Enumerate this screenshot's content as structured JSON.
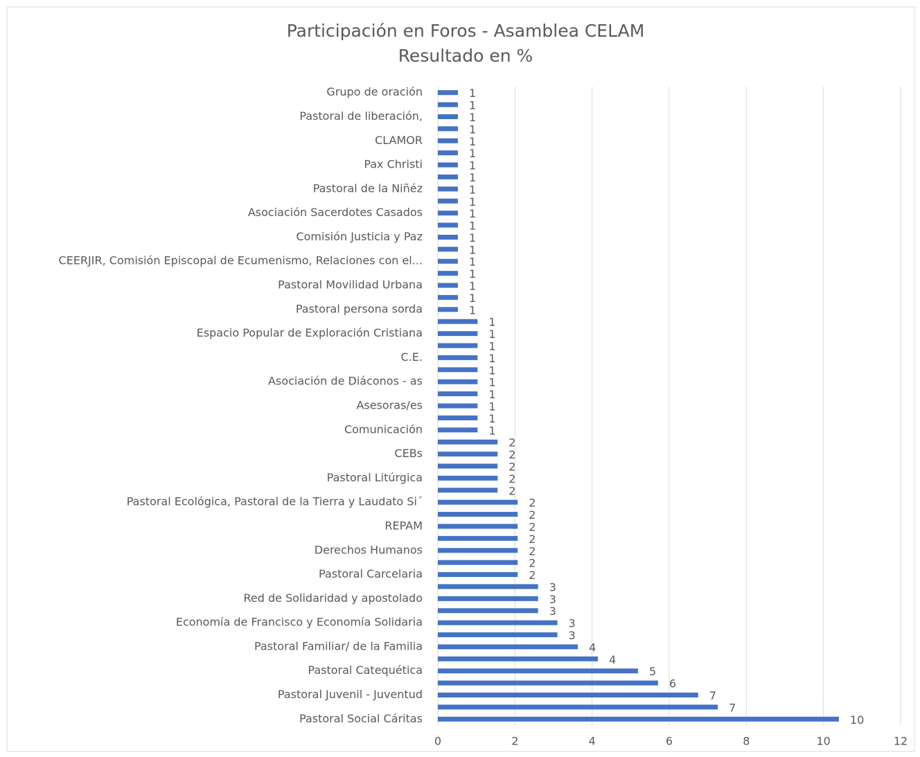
{
  "chart_data": {
    "type": "bar",
    "orientation": "horizontal",
    "title": "Participación en Foros - Asamblea CELAM",
    "subtitle": "Resultado en %",
    "categories": [
      "Grupo de oración",
      null,
      "Pastoral de liberación,",
      null,
      "CLAMOR",
      null,
      "Pax Christi",
      null,
      "Pastoral de la Niñéz",
      null,
      "Asociación Sacerdotes Casados",
      null,
      "Comisión Justicia y Paz",
      null,
      "CEERJIR, Comisión Episcopal de Ecumenismo, Relaciones con el...",
      null,
      "Pastoral Movilidad Urbana",
      null,
      "Pastoral persona sorda",
      null,
      "Espacio Popular de Exploración Cristiana",
      null,
      "C.E.",
      null,
      "Asociación de Diáconos - as",
      null,
      "Asesoras/es",
      null,
      "Comunicación",
      null,
      "CEBs",
      null,
      "Pastoral Litúrgica",
      null,
      "Pastoral Ecológica, Pastoral de la Tierra y Laudato Si´",
      null,
      "REPAM",
      null,
      "Derechos Humanos",
      null,
      "Pastoral Carcelaria",
      null,
      "Red de Solidaridad y apostolado",
      null,
      "Economía de Francisco y Economía Solidaria",
      null,
      "Pastoral Familiar/ de la Familia",
      null,
      "Pastoral Catequética",
      null,
      "Pastoral Juvenil - Juventud",
      null,
      "Pastoral Social Cáritas"
    ],
    "values": [
      0.52,
      0.52,
      0.52,
      0.52,
      0.52,
      0.52,
      0.52,
      0.52,
      0.52,
      0.52,
      0.52,
      0.52,
      0.52,
      0.52,
      0.52,
      0.52,
      0.52,
      0.52,
      0.52,
      1.03,
      1.03,
      1.03,
      1.03,
      1.03,
      1.03,
      1.03,
      1.03,
      1.03,
      1.03,
      1.55,
      1.55,
      1.55,
      1.55,
      1.55,
      2.07,
      2.07,
      2.07,
      2.07,
      2.07,
      2.07,
      2.07,
      2.6,
      2.6,
      2.6,
      3.1,
      3.1,
      3.63,
      4.15,
      5.19,
      5.71,
      6.75,
      7.26,
      10.4
    ],
    "value_labels": [
      "1",
      "1",
      "1",
      "1",
      "1",
      "1",
      "1",
      "1",
      "1",
      "1",
      "1",
      "1",
      "1",
      "1",
      "1",
      "1",
      "1",
      "1",
      "1",
      "1",
      "1",
      "1",
      "1",
      "1",
      "1",
      "1",
      "1",
      "1",
      "1",
      "2",
      "2",
      "2",
      "2",
      "2",
      "2",
      "2",
      "2",
      "2",
      "2",
      "2",
      "2",
      "3",
      "3",
      "3",
      "3",
      "3",
      "4",
      "4",
      "5",
      "6",
      "7",
      "7",
      "10"
    ],
    "color": "#4472c4",
    "xlim": [
      0,
      12
    ],
    "xticks": [
      0,
      2,
      4,
      6,
      8,
      10,
      12
    ],
    "grid": true
  }
}
